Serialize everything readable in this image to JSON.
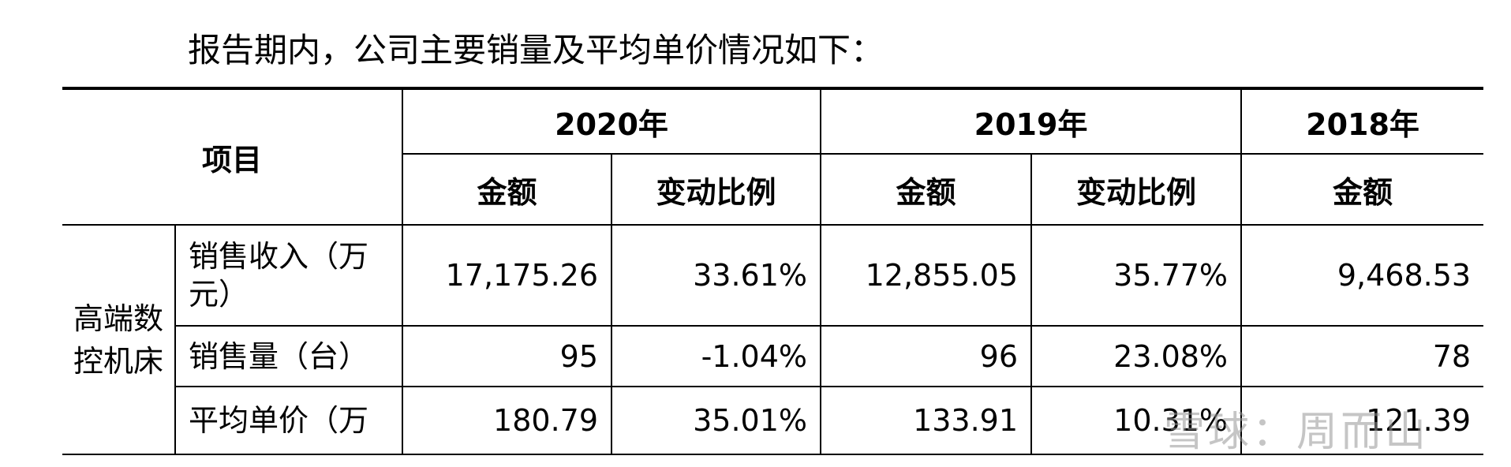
{
  "intro": "报告期内，公司主要销量及平均单价情况如下：",
  "table": {
    "item_header": "项目",
    "years": [
      "2020年",
      "2019年",
      "2018年"
    ],
    "sub_headers": [
      "金额",
      "变动比例",
      "金额",
      "变动比例",
      "金额"
    ],
    "group": "高端数控机床",
    "rows": [
      {
        "label": "销售收入（万元）",
        "cells": [
          "17,175.26",
          "33.61%",
          "12,855.05",
          "35.77%",
          "9,468.53"
        ]
      },
      {
        "label": "销售量（台）",
        "cells": [
          "95",
          "-1.04%",
          "96",
          "23.08%",
          "78"
        ]
      },
      {
        "label": "平均单价（万",
        "cells": [
          "180.79",
          "35.01%",
          "133.91",
          "10.31%",
          "121.39"
        ]
      }
    ]
  },
  "watermark": "雪球：周而山"
}
